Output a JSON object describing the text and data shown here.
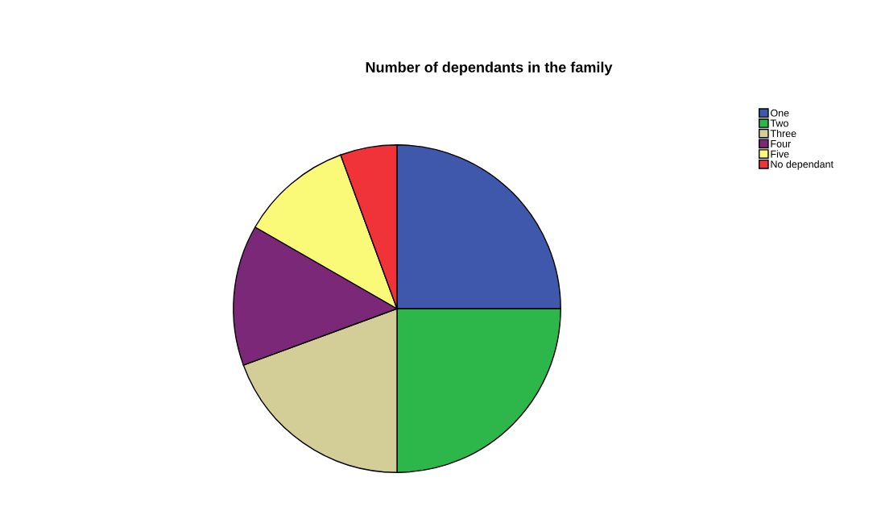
{
  "chart_data": {
    "type": "pie",
    "title": "Number of dependants in the family",
    "categories": [
      "One",
      "Two",
      "Three",
      "Four",
      "Five",
      "No dependant"
    ],
    "values": [
      25,
      25,
      19.4,
      13.9,
      11.1,
      5.6
    ],
    "colors": [
      "#3f58ab",
      "#2db64a",
      "#d3cd98",
      "#7b2878",
      "#fafa78",
      "#ef3338"
    ],
    "legend": "top right"
  }
}
